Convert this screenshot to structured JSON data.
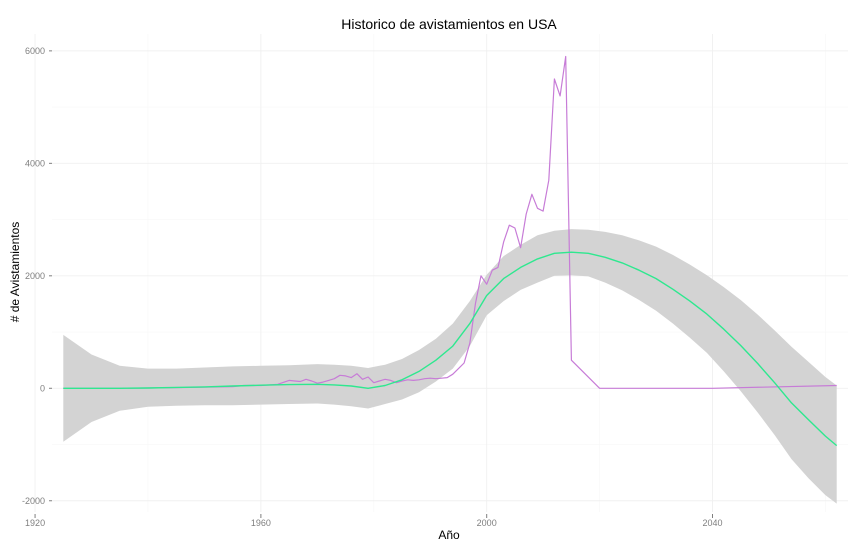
{
  "chart_data": {
    "type": "line",
    "title": "Historico de avistamientos en USA",
    "xlabel": "Año",
    "ylabel": "# de Avistamientos",
    "xlim": [
      1923,
      2064
    ],
    "ylim": [
      -2200,
      6300
    ],
    "x_ticks": [
      1920,
      1960,
      2000,
      2040
    ],
    "x_tick_labels": [
      "1920",
      "1960",
      "2000",
      "2040"
    ],
    "y_ticks": [
      -2000,
      0,
      2000,
      4000,
      6000
    ],
    "y_tick_labels": [
      "-2000",
      "0",
      "2000",
      "4000",
      "6000"
    ],
    "grid": true,
    "legend": "none",
    "colors": {
      "observed": "#c77cd7",
      "smooth": "#2ee88f",
      "ribbon": "#d3d3d3"
    },
    "series": [
      {
        "kind": "observed",
        "x": [
          1925,
          1930,
          1935,
          1940,
          1945,
          1950,
          1955,
          1957,
          1960,
          1963,
          1965,
          1966,
          1967,
          1968,
          1969,
          1970,
          1971,
          1972,
          1973,
          1974,
          1975,
          1976,
          1977,
          1978,
          1979,
          1980,
          1981,
          1982,
          1983,
          1984,
          1985,
          1986,
          1987,
          1988,
          1989,
          1990,
          1991,
          1992,
          1993,
          1994,
          1995,
          1996,
          1997,
          1998,
          1999,
          2000,
          2001,
          2002,
          2003,
          2004,
          2005,
          2006,
          2007,
          2008,
          2009,
          2010,
          2011,
          2012,
          2013,
          2014,
          2015,
          2020,
          2040,
          2062
        ],
        "y": [
          0,
          0,
          0,
          5,
          10,
          20,
          30,
          50,
          50,
          70,
          140,
          130,
          120,
          160,
          130,
          90,
          110,
          140,
          170,
          230,
          220,
          190,
          260,
          160,
          200,
          100,
          130,
          160,
          140,
          100,
          130,
          150,
          140,
          150,
          170,
          180,
          170,
          180,
          190,
          250,
          350,
          450,
          800,
          1500,
          2000,
          1850,
          2100,
          2150,
          2600,
          2900,
          2850,
          2500,
          3100,
          3450,
          3200,
          3150,
          3700,
          5500,
          5200,
          5900,
          500,
          0,
          0,
          50
        ]
      },
      {
        "kind": "smooth",
        "x": [
          1925,
          1930,
          1935,
          1940,
          1945,
          1950,
          1955,
          1960,
          1965,
          1970,
          1973,
          1976,
          1979,
          1982,
          1985,
          1988,
          1991,
          1994,
          1997,
          2000,
          2003,
          2006,
          2009,
          2012,
          2015,
          2018,
          2021,
          2024,
          2027,
          2030,
          2033,
          2036,
          2039,
          2042,
          2045,
          2048,
          2051,
          2054,
          2057,
          2060,
          2062
        ],
        "y": [
          0,
          0,
          0,
          5,
          15,
          25,
          40,
          55,
          65,
          70,
          60,
          40,
          0,
          50,
          150,
          300,
          500,
          750,
          1150,
          1650,
          1950,
          2150,
          2300,
          2400,
          2420,
          2400,
          2330,
          2230,
          2100,
          1950,
          1760,
          1550,
          1320,
          1050,
          760,
          440,
          100,
          -260,
          -560,
          -850,
          -1020
        ]
      },
      {
        "kind": "ribbon",
        "x": [
          1925,
          1930,
          1935,
          1940,
          1945,
          1950,
          1955,
          1960,
          1965,
          1970,
          1973,
          1976,
          1979,
          1982,
          1985,
          1988,
          1991,
          1994,
          1997,
          2000,
          2003,
          2006,
          2009,
          2012,
          2015,
          2018,
          2021,
          2024,
          2027,
          2030,
          2033,
          2036,
          2039,
          2042,
          2045,
          2048,
          2051,
          2054,
          2057,
          2060,
          2062
        ],
        "upper": [
          950,
          600,
          400,
          350,
          350,
          370,
          390,
          400,
          410,
          430,
          420,
          400,
          360,
          420,
          520,
          680,
          880,
          1150,
          1550,
          2020,
          2350,
          2550,
          2720,
          2800,
          2830,
          2820,
          2780,
          2720,
          2630,
          2520,
          2370,
          2200,
          2010,
          1800,
          1570,
          1310,
          1030,
          740,
          470,
          200,
          50
        ],
        "lower": [
          -950,
          -600,
          -400,
          -330,
          -310,
          -300,
          -300,
          -290,
          -280,
          -270,
          -290,
          -320,
          -360,
          -280,
          -200,
          -70,
          120,
          350,
          750,
          1300,
          1550,
          1750,
          1880,
          2000,
          2010,
          1990,
          1880,
          1740,
          1570,
          1380,
          1150,
          900,
          630,
          300,
          -50,
          -430,
          -830,
          -1260,
          -1600,
          -1900,
          -2050
        ]
      }
    ]
  }
}
